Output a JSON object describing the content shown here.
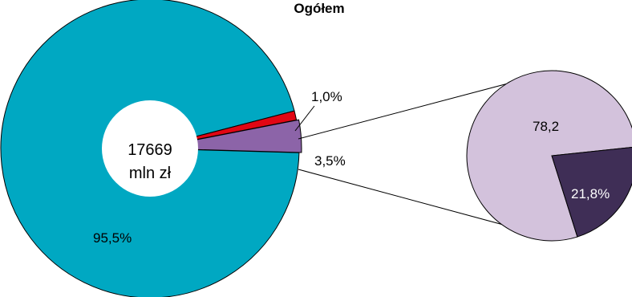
{
  "chart_data": [
    {
      "type": "pie",
      "title": "Ogółem",
      "center_label": [
        "17669",
        "mln zł"
      ],
      "slices": [
        {
          "label": "95,5%",
          "value": 95.5,
          "color": "#00a8c2"
        },
        {
          "label": "1,0%",
          "value": 1.0,
          "color": "#e10613"
        },
        {
          "label": "3,5%",
          "value": 3.5,
          "color": "#8c64a8"
        }
      ],
      "exploded_slice": "3,5%"
    },
    {
      "type": "pie",
      "slices": [
        {
          "label": "78,2",
          "value": 78.2,
          "color": "#d3c2dc"
        },
        {
          "label": "21,8%",
          "value": 21.8,
          "color": "#3f2e56"
        }
      ]
    }
  ]
}
